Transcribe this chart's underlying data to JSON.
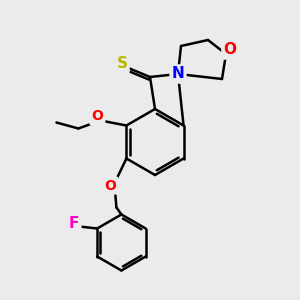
{
  "bg_color": "#ebebeb",
  "bond_color": "#000000",
  "bond_width": 1.8,
  "atom_colors": {
    "S": "#b8b800",
    "N": "#0000ff",
    "O": "#ff0000",
    "F": "#ff00cc",
    "C": "#000000"
  },
  "font_size": 10,
  "figsize": [
    3.0,
    3.0
  ],
  "dpi": 100
}
